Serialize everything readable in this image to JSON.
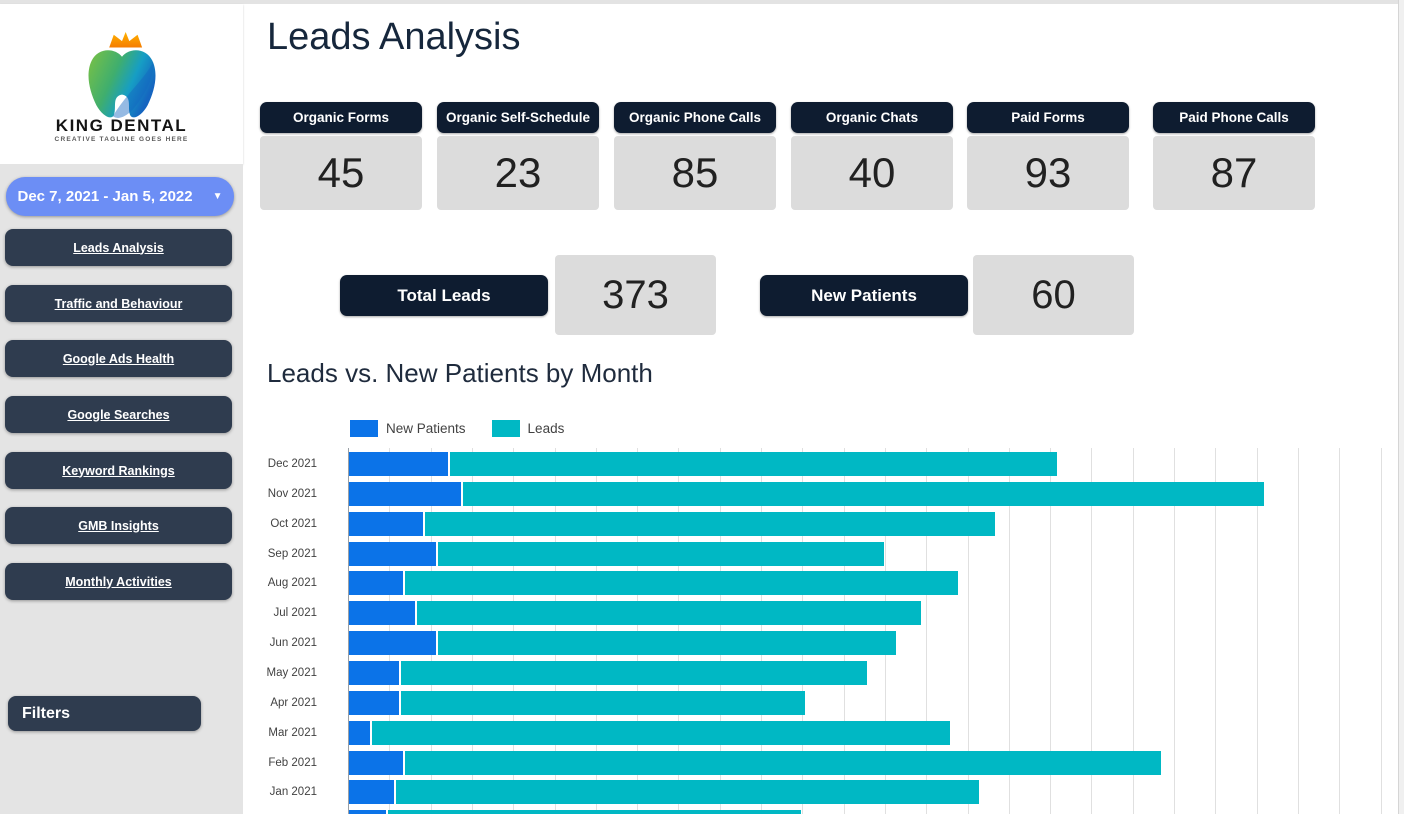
{
  "page_title": "Leads Analysis",
  "sidebar": {
    "brand": {
      "name": "KING DENTAL",
      "tagline": "CREATIVE TAGLINE GOES HERE"
    },
    "date_range": {
      "label": "Dec 7, 2021 - Jan 5, 2022",
      "caret": "▼"
    },
    "nav_items": [
      {
        "label": "Leads Analysis",
        "active": true
      },
      {
        "label": "Traffic and Behaviour"
      },
      {
        "label": "Google Ads Health"
      },
      {
        "label": "Google Searches"
      },
      {
        "label": "Keyword Rankings"
      },
      {
        "label": "GMB Insights"
      },
      {
        "label": "Monthly Activities"
      }
    ],
    "filters_label": "Filters"
  },
  "kpis": [
    {
      "label": "Organic Forms",
      "value": "45"
    },
    {
      "label": "Organic Self-Schedule",
      "value": "23"
    },
    {
      "label": "Organic Phone Calls",
      "value": "85"
    },
    {
      "label": "Organic Chats",
      "value": "40"
    },
    {
      "label": "Paid Forms",
      "value": "93"
    },
    {
      "label": "Paid Phone Calls",
      "value": "87"
    }
  ],
  "totals": [
    {
      "label": "Total Leads",
      "value": "373"
    },
    {
      "label": "New Patients",
      "value": "60"
    }
  ],
  "section_title": "Leads vs. New Patients by Month",
  "chart_data": {
    "type": "bar",
    "orientation": "horizontal",
    "stacked": true,
    "title": "Leads vs. New Patients by Month",
    "categories": [
      "Dec 2021",
      "Nov 2021",
      "Oct 2021",
      "Sep 2021",
      "Aug 2021",
      "Jul 2021",
      "Jun 2021",
      "May 2021",
      "Apr 2021",
      "Mar 2021",
      "Feb 2021",
      "Jan 2021",
      ""
    ],
    "series": [
      {
        "name": "New Patients",
        "color": "#0b73e8",
        "values": [
          24,
          27,
          18,
          21,
          13,
          16,
          21,
          12,
          12,
          5,
          13,
          11,
          9
        ]
      },
      {
        "name": "Leads",
        "color": "#00b8c4",
        "values": [
          147,
          194,
          138,
          108,
          134,
          122,
          111,
          113,
          98,
          140,
          183,
          141,
          100
        ]
      }
    ],
    "xlim": [
      0,
      250
    ],
    "grid": true,
    "legend_position": "top",
    "note": "values estimated from bar lengths; x-axis tick labels and last row are cut off at the bottom edge of the screenshot"
  },
  "colors": {
    "accent_blue_button": "#6c8ef5",
    "nav_button": "#2f3c4f",
    "kpi_header": "#0e1c30",
    "kpi_body": "#dcdcdc",
    "bar_new_patients": "#0b73e8",
    "bar_leads": "#00b8c4",
    "title_text": "#16273c"
  }
}
